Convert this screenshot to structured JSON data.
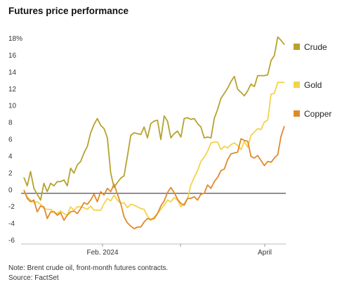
{
  "chart_data": {
    "type": "line",
    "title": "Futures price performance",
    "xlabel": "",
    "ylabel": "",
    "ylim": [
      -6,
      18
    ],
    "yticks": [
      "18%",
      "16",
      "14",
      "12",
      "10",
      "8",
      "6",
      "4",
      "2",
      "0",
      "-2",
      "-4",
      "-6"
    ],
    "xticks": [
      "Feb. 2024",
      "April"
    ],
    "grid": false,
    "legend_position": "right",
    "series": [
      {
        "name": "Crude",
        "color": "#b6a22e",
        "values": [
          1.5,
          0.5,
          2.2,
          0.2,
          -0.5,
          -1.2,
          0.8,
          -0.2,
          0.8,
          0.5,
          1.0,
          1.0,
          1.2,
          0.5,
          2.6,
          2.0,
          3.0,
          3.4,
          4.4,
          5.2,
          6.8,
          7.8,
          8.5,
          7.7,
          7.3,
          6.2,
          2.0,
          0.3,
          0.9,
          1.4,
          1.7,
          4.0,
          6.5,
          6.8,
          6.7,
          6.6,
          7.5,
          6.2,
          7.9,
          8.2,
          8.3,
          6.0,
          8.8,
          8.2,
          6.2,
          6.7,
          7.0,
          6.3,
          8.5,
          8.6,
          8.4,
          8.5,
          7.9,
          7.5,
          6.2,
          6.3,
          6.2,
          8.5,
          9.6,
          10.9,
          11.5,
          12.1,
          12.9,
          13.5,
          12.0,
          11.6,
          11.2,
          11.8,
          12.6,
          12.3,
          13.6,
          13.6,
          13.6,
          13.7,
          15.4,
          16.0,
          18.2,
          17.8,
          17.3
        ]
      },
      {
        "name": "Gold",
        "color": "#f3d34a",
        "values": [
          0,
          -0.8,
          -1.2,
          -1.5,
          -1.4,
          -1.7,
          -2.2,
          -2.3,
          -2.3,
          -2.6,
          -2.8,
          -2.5,
          -2.8,
          -3.0,
          -2.0,
          -2.4,
          -2.0,
          -2.0,
          -2.1,
          -2.3,
          -1.9,
          -2.4,
          -2.4,
          -2.4,
          -1.6,
          -1.0,
          -1.3,
          -0.6,
          -1.2,
          -1.6,
          -1.5,
          -2.1,
          -1.7,
          -1.8,
          -2.0,
          -2.2,
          -2.3,
          -3.1,
          -3.6,
          -3.2,
          -2.8,
          -2.3,
          -1.8,
          -1.2,
          -1.4,
          -0.9,
          -1.2,
          -2.0,
          -1.6,
          -1.0,
          0.6,
          1.5,
          2.3,
          3.4,
          3.9,
          4.6,
          5.6,
          5.7,
          5.7,
          4.8,
          5.2,
          5.0,
          5.4,
          5.6,
          5.3,
          4.8,
          5.8,
          5.1,
          6.5,
          6.9,
          7.3,
          7.2,
          8.1,
          8.3,
          11.4,
          11.5,
          12.8,
          12.8,
          12.8
        ]
      },
      {
        "name": "Copper",
        "color": "#e08a2b",
        "values": [
          0,
          -1.0,
          -1.4,
          -1.2,
          -2.6,
          -1.9,
          -2.0,
          -3.4,
          -2.6,
          -2.6,
          -3.0,
          -2.7,
          -3.6,
          -3.0,
          -2.6,
          -2.5,
          -2.8,
          -2.2,
          -1.5,
          -1.7,
          -1.2,
          -0.5,
          -1.4,
          -0.2,
          -0.6,
          0.2,
          -0.2,
          0.7,
          -0.5,
          -1.6,
          -3.2,
          -3.9,
          -4.3,
          -4.6,
          -4.4,
          -4.4,
          -3.8,
          -3.4,
          -3.5,
          -3.4,
          -2.8,
          -1.9,
          -1.3,
          -0.3,
          0.3,
          -0.3,
          -1.1,
          -1.6,
          -1.8,
          -1.0,
          -1.0,
          -0.8,
          -1.2,
          -0.5,
          -0.4,
          0.6,
          0.2,
          1.0,
          1.5,
          2.3,
          2.5,
          3.6,
          4.3,
          4.4,
          4.5,
          6.1,
          5.9,
          5.8,
          4.0,
          3.8,
          4.1,
          3.5,
          2.9,
          3.4,
          3.3,
          3.8,
          4.2,
          6.4,
          7.6
        ]
      }
    ]
  },
  "title": "Futures price performance",
  "note": "Note: Brent crude oil, front-month futures contracts.",
  "source": "Source: FactSet"
}
